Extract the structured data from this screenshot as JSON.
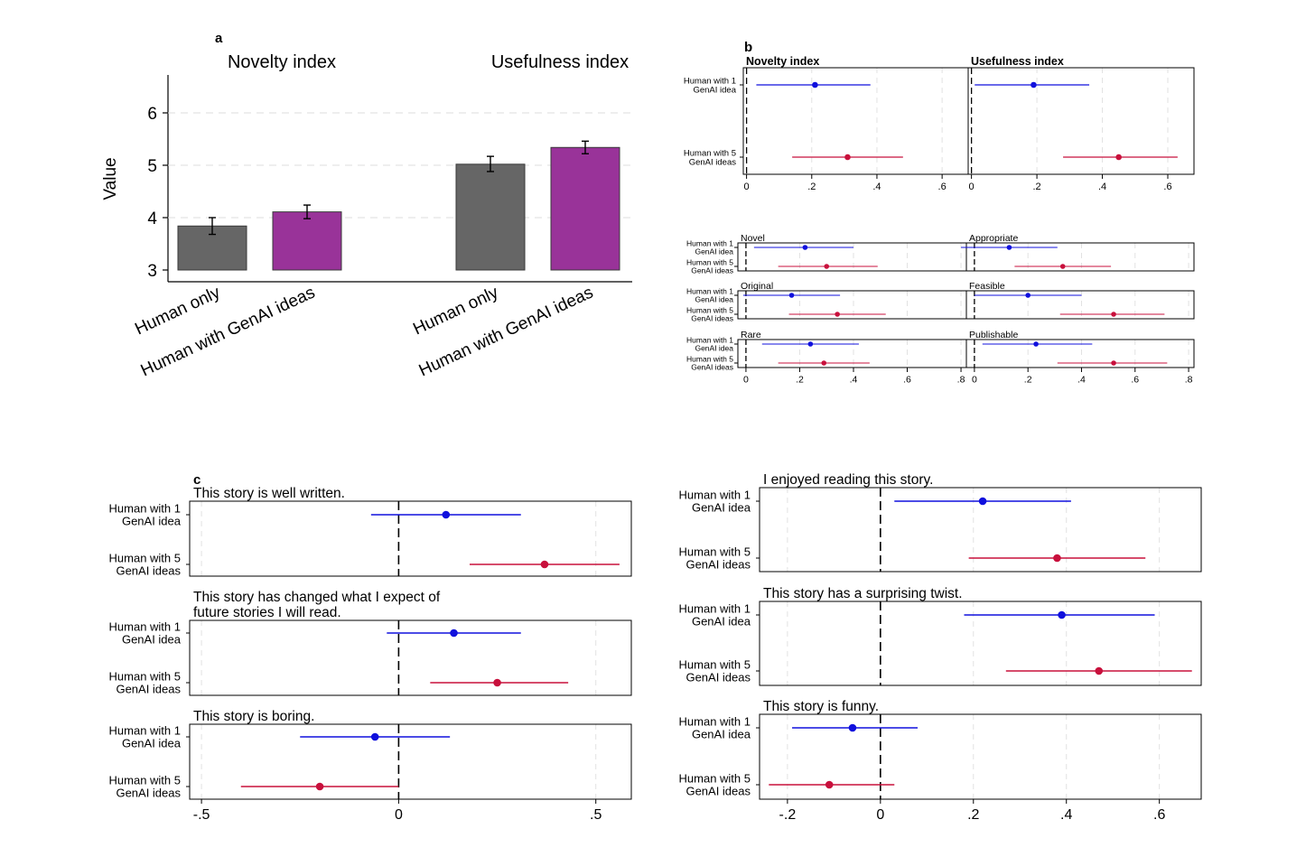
{
  "chart_data": [
    {
      "panel": "a",
      "type": "bar",
      "ylabel": "Value",
      "ylim": [
        3,
        6.8
      ],
      "yticks": [
        3,
        4,
        5,
        6
      ],
      "grid": "horizontal dashed",
      "groups": [
        {
          "title": "Novelty index",
          "categories": [
            "Human only",
            "Human with GenAI ideas"
          ],
          "values": [
            3.84,
            4.11
          ],
          "ci_low": [
            3.68,
            3.98
          ],
          "ci_high": [
            4.0,
            4.24
          ],
          "colors": [
            "#666666",
            "#993399"
          ]
        },
        {
          "title": "Usefulness index",
          "categories": [
            "Human only",
            "Human with GenAI ideas"
          ],
          "values": [
            5.02,
            5.34
          ],
          "ci_low": [
            4.88,
            5.22
          ],
          "ci_high": [
            5.17,
            5.46
          ],
          "colors": [
            "#666666",
            "#993399"
          ]
        }
      ]
    },
    {
      "panel": "b",
      "type": "coefficient",
      "row_labels": [
        [
          "Human with 1",
          "GenAI idea"
        ],
        [
          "Human with 5",
          "GenAI ideas"
        ]
      ],
      "series_colors": [
        "#1010dd",
        "#c8103c"
      ],
      "top": {
        "xlim": [
          -0.01,
          0.68
        ],
        "xticks": [
          0,
          0.2,
          0.4,
          0.6
        ],
        "xticklabels": [
          "0",
          ".2",
          ".4",
          ".6"
        ],
        "subplots": [
          {
            "title": "Novelty index",
            "estimates": [
              0.21,
              0.31
            ],
            "ci": [
              [
                0.03,
                0.38
              ],
              [
                0.14,
                0.48
              ]
            ]
          },
          {
            "title": "Usefulness index",
            "estimates": [
              0.19,
              0.45
            ],
            "ci": [
              [
                0.01,
                0.36
              ],
              [
                0.28,
                0.63
              ]
            ]
          }
        ]
      },
      "bottom": {
        "xlim": [
          -0.03,
          0.82
        ],
        "xticks": [
          0,
          0.2,
          0.4,
          0.6,
          0.8
        ],
        "xticklabels": [
          "0",
          ".2",
          ".4",
          ".6",
          ".8"
        ],
        "subplots": [
          {
            "title": "Novel",
            "estimates": [
              0.22,
              0.3
            ],
            "ci": [
              [
                0.03,
                0.4
              ],
              [
                0.12,
                0.49
              ]
            ]
          },
          {
            "title": "Appropriate",
            "estimates": [
              0.13,
              0.33
            ],
            "ci": [
              [
                -0.05,
                0.31
              ],
              [
                0.15,
                0.51
              ]
            ]
          },
          {
            "title": "Original",
            "estimates": [
              0.17,
              0.34
            ],
            "ci": [
              [
                -0.01,
                0.35
              ],
              [
                0.16,
                0.52
              ]
            ]
          },
          {
            "title": "Feasible",
            "estimates": [
              0.2,
              0.52
            ],
            "ci": [
              [
                0.0,
                0.4
              ],
              [
                0.32,
                0.71
              ]
            ]
          },
          {
            "title": "Rare",
            "estimates": [
              0.24,
              0.29
            ],
            "ci": [
              [
                0.06,
                0.42
              ],
              [
                0.12,
                0.46
              ]
            ]
          },
          {
            "title": "Publishable",
            "estimates": [
              0.23,
              0.52
            ],
            "ci": [
              [
                0.03,
                0.44
              ],
              [
                0.31,
                0.72
              ]
            ]
          }
        ]
      }
    },
    {
      "panel": "c",
      "type": "coefficient",
      "row_labels": [
        [
          "Human with 1",
          "GenAI idea"
        ],
        [
          "Human with 5",
          "GenAI ideas"
        ]
      ],
      "series_colors": [
        "#1010dd",
        "#c8103c"
      ],
      "left": {
        "xlim": [
          -0.53,
          0.59
        ],
        "xticks": [
          -0.5,
          0,
          0.5
        ],
        "xticklabels": [
          "-.5",
          "0",
          ".5"
        ],
        "subplots": [
          {
            "title": [
              "This story is well written."
            ],
            "estimates": [
              0.12,
              0.37
            ],
            "ci": [
              [
                -0.07,
                0.31
              ],
              [
                0.18,
                0.56
              ]
            ]
          },
          {
            "title": [
              "This story has changed what I expect of",
              "future stories I will read."
            ],
            "estimates": [
              0.14,
              0.25
            ],
            "ci": [
              [
                -0.03,
                0.31
              ],
              [
                0.08,
                0.43
              ]
            ]
          },
          {
            "title": [
              "This story is boring."
            ],
            "estimates": [
              -0.06,
              -0.2
            ],
            "ci": [
              [
                -0.25,
                0.13
              ],
              [
                -0.4,
                0.0
              ]
            ]
          }
        ]
      },
      "right": {
        "xlim": [
          -0.26,
          0.69
        ],
        "xticks": [
          -0.2,
          0,
          0.2,
          0.4,
          0.6
        ],
        "xticklabels": [
          "-.2",
          "0",
          ".2",
          ".4",
          ".6"
        ],
        "subplots": [
          {
            "title": [
              "I enjoyed reading this story."
            ],
            "estimates": [
              0.22,
              0.38
            ],
            "ci": [
              [
                0.03,
                0.41
              ],
              [
                0.19,
                0.57
              ]
            ]
          },
          {
            "title": [
              "This story has a surprising twist."
            ],
            "estimates": [
              0.39,
              0.47
            ],
            "ci": [
              [
                0.18,
                0.59
              ],
              [
                0.27,
                0.67
              ]
            ]
          },
          {
            "title": [
              "This story is funny."
            ],
            "estimates": [
              -0.06,
              -0.11
            ],
            "ci": [
              [
                -0.19,
                0.08
              ],
              [
                -0.24,
                0.03
              ]
            ]
          }
        ]
      }
    }
  ],
  "panel_letters": {
    "a": "a",
    "b": "b",
    "c": "c"
  }
}
